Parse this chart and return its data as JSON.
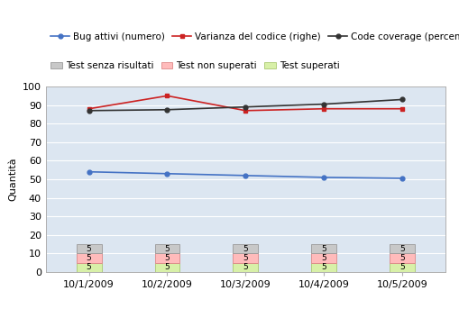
{
  "x_labels": [
    "10/1/2009",
    "10/2/2009",
    "10/3/2009",
    "10/4/2009",
    "10/5/2009"
  ],
  "x_positions": [
    0,
    1,
    2,
    3,
    4
  ],
  "bug_attivi": [
    54,
    53,
    52,
    51,
    50.5
  ],
  "varianza": [
    88,
    95,
    87,
    88,
    88
  ],
  "code_coverage": [
    87,
    87.5,
    89,
    90.5,
    93
  ],
  "stacked_gray": [
    5,
    5,
    5,
    5,
    5
  ],
  "stacked_pink": [
    5,
    5,
    5,
    5,
    5
  ],
  "stacked_green": [
    5,
    5,
    5,
    5,
    5
  ],
  "bar_width": 0.32,
  "ylim": [
    0,
    100
  ],
  "yticks": [
    0,
    10,
    20,
    30,
    40,
    50,
    60,
    70,
    80,
    90,
    100
  ],
  "ylabel": "Quantità",
  "color_bug": "#4472c4",
  "color_varianza": "#cc2222",
  "color_coverage": "#333333",
  "color_gray": "#c8c8c8",
  "color_pink": "#ffbbbb",
  "color_green": "#d8f0a8",
  "color_border_gray": "#999999",
  "color_border_pink": "#dd8888",
  "color_border_green": "#aac870",
  "background_plot": "#dce6f1",
  "background_fig": "#ffffff",
  "legend1_labels": [
    "Bug attivi (numero)",
    "Varianza del codice (righe)",
    "Code coverage (percentuale)"
  ],
  "legend2_labels": [
    "Test senza risultati",
    "Test non superati",
    "Test superati"
  ],
  "grid_color": "#ffffff",
  "font_size": 8,
  "tick_label_size": 8,
  "bar_label_fontsize": 6.5
}
